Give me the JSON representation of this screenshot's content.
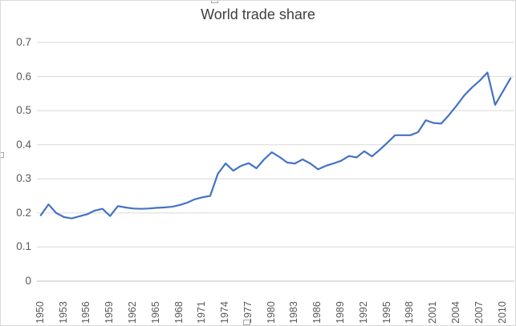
{
  "chart_data": {
    "type": "line",
    "title": "World trade share",
    "xlabel": "",
    "ylabel": "",
    "ylim": [
      0,
      0.7
    ],
    "grid": true,
    "legend": "none",
    "line_color": "#4472C4",
    "x": [
      1950,
      1951,
      1952,
      1953,
      1954,
      1955,
      1956,
      1957,
      1958,
      1959,
      1960,
      1961,
      1962,
      1963,
      1964,
      1965,
      1966,
      1967,
      1968,
      1969,
      1970,
      1971,
      1972,
      1973,
      1974,
      1975,
      1976,
      1977,
      1978,
      1979,
      1980,
      1981,
      1982,
      1983,
      1984,
      1985,
      1986,
      1987,
      1988,
      1989,
      1990,
      1991,
      1992,
      1993,
      1994,
      1995,
      1996,
      1997,
      1998,
      1999,
      2000,
      2001,
      2002,
      2003,
      2004,
      2005,
      2006,
      2007,
      2008,
      2009,
      2010,
      2011
    ],
    "values": [
      0.193,
      0.225,
      0.2,
      0.188,
      0.184,
      0.19,
      0.196,
      0.207,
      0.212,
      0.191,
      0.22,
      0.216,
      0.213,
      0.212,
      0.213,
      0.215,
      0.216,
      0.218,
      0.223,
      0.23,
      0.24,
      0.246,
      0.25,
      0.315,
      0.345,
      0.324,
      0.338,
      0.346,
      0.331,
      0.357,
      0.378,
      0.364,
      0.348,
      0.345,
      0.357,
      0.345,
      0.328,
      0.338,
      0.345,
      0.353,
      0.367,
      0.363,
      0.381,
      0.366,
      0.385,
      0.406,
      0.428,
      0.428,
      0.428,
      0.437,
      0.472,
      0.464,
      0.462,
      0.487,
      0.515,
      0.545,
      0.568,
      0.588,
      0.612,
      0.517,
      0.556,
      0.595
    ],
    "ytick_labels": [
      "0.7",
      "0.6",
      "0.5",
      "0.4",
      "0.3",
      "0.2",
      "0.1",
      "0"
    ],
    "xtick_labels": [
      "1950",
      "1953",
      "1956",
      "1959",
      "1962",
      "1965",
      "1968",
      "1971",
      "1974",
      "1977",
      "1980",
      "1983",
      "1986",
      "1989",
      "1992",
      "1995",
      "1998",
      "2001",
      "2004",
      "2007",
      "2010"
    ]
  },
  "colors": {
    "line": "#4472C4",
    "gridline": "#d9d9d9",
    "axis_line": "#bfbfbf",
    "tick_text": "#595959",
    "title_text": "#3f3f3f",
    "handle_border": "#a6a6a6"
  }
}
